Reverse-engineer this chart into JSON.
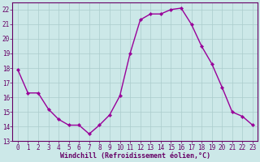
{
  "x": [
    0,
    1,
    2,
    3,
    4,
    5,
    6,
    7,
    8,
    9,
    10,
    11,
    12,
    13,
    14,
    15,
    16,
    17,
    18,
    19,
    20,
    21,
    22,
    23
  ],
  "y": [
    17.9,
    16.3,
    16.3,
    15.2,
    14.5,
    14.1,
    14.1,
    13.5,
    14.1,
    14.8,
    16.1,
    19.0,
    21.3,
    21.7,
    21.7,
    22.0,
    22.1,
    21.0,
    19.5,
    18.3,
    16.7,
    15.0,
    14.7,
    14.1
  ],
  "line_color": "#990099",
  "marker": "D",
  "markersize": 2.2,
  "linewidth": 1.0,
  "background_color": "#cce8e8",
  "grid_color": "#aacccc",
  "axis_color": "#660066",
  "tick_color": "#660066",
  "xlabel": "Windchill (Refroidissement éolien,°C)",
  "xlabel_fontsize": 6.0,
  "tick_fontsize": 5.5,
  "ytick_fontsize": 5.5,
  "ylim": [
    13,
    22.5
  ],
  "xlim": [
    -0.5,
    23.5
  ],
  "yticks": [
    13,
    14,
    15,
    16,
    17,
    18,
    19,
    20,
    21,
    22
  ],
  "xticks": [
    0,
    1,
    2,
    3,
    4,
    5,
    6,
    7,
    8,
    9,
    10,
    11,
    12,
    13,
    14,
    15,
    16,
    17,
    18,
    19,
    20,
    21,
    22,
    23
  ]
}
